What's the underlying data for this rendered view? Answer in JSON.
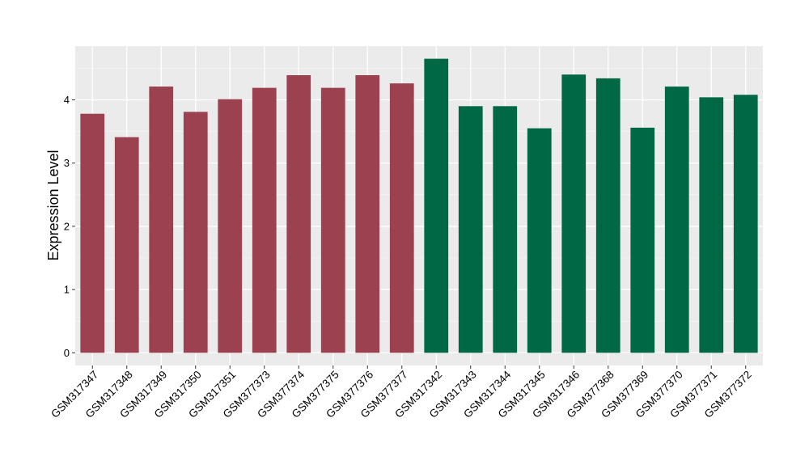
{
  "chart_data": {
    "type": "bar",
    "title": "",
    "xlabel": "",
    "ylabel": "Expression Level",
    "ylim": [
      -0.2,
      4.85
    ],
    "yticks": [
      0,
      1,
      2,
      3,
      4
    ],
    "grid": true,
    "legend": "none",
    "colors": {
      "panel_background": "#EBEBEB",
      "grid_major": "#FFFFFF",
      "grid_minor": "#F5F5F5",
      "group_1": "#9B4150",
      "group_2": "#006844"
    },
    "categories": [
      "GSM317347",
      "GSM317348",
      "GSM317349",
      "GSM317350",
      "GSM317351",
      "GSM377373",
      "GSM377374",
      "GSM377375",
      "GSM377376",
      "GSM377377",
      "GSM317342",
      "GSM317343",
      "GSM317344",
      "GSM317345",
      "GSM317346",
      "GSM377368",
      "GSM377369",
      "GSM377370",
      "GSM377371",
      "GSM377372"
    ],
    "values": [
      3.78,
      3.41,
      4.21,
      3.81,
      4.01,
      4.19,
      4.39,
      4.19,
      4.39,
      4.26,
      4.65,
      3.9,
      3.9,
      3.55,
      4.4,
      4.34,
      3.56,
      4.21,
      4.04,
      4.08
    ],
    "bar_colors": [
      "#9B4150",
      "#9B4150",
      "#9B4150",
      "#9B4150",
      "#9B4150",
      "#9B4150",
      "#9B4150",
      "#9B4150",
      "#9B4150",
      "#9B4150",
      "#006844",
      "#006844",
      "#006844",
      "#006844",
      "#006844",
      "#006844",
      "#006844",
      "#006844",
      "#006844",
      "#006844"
    ]
  }
}
